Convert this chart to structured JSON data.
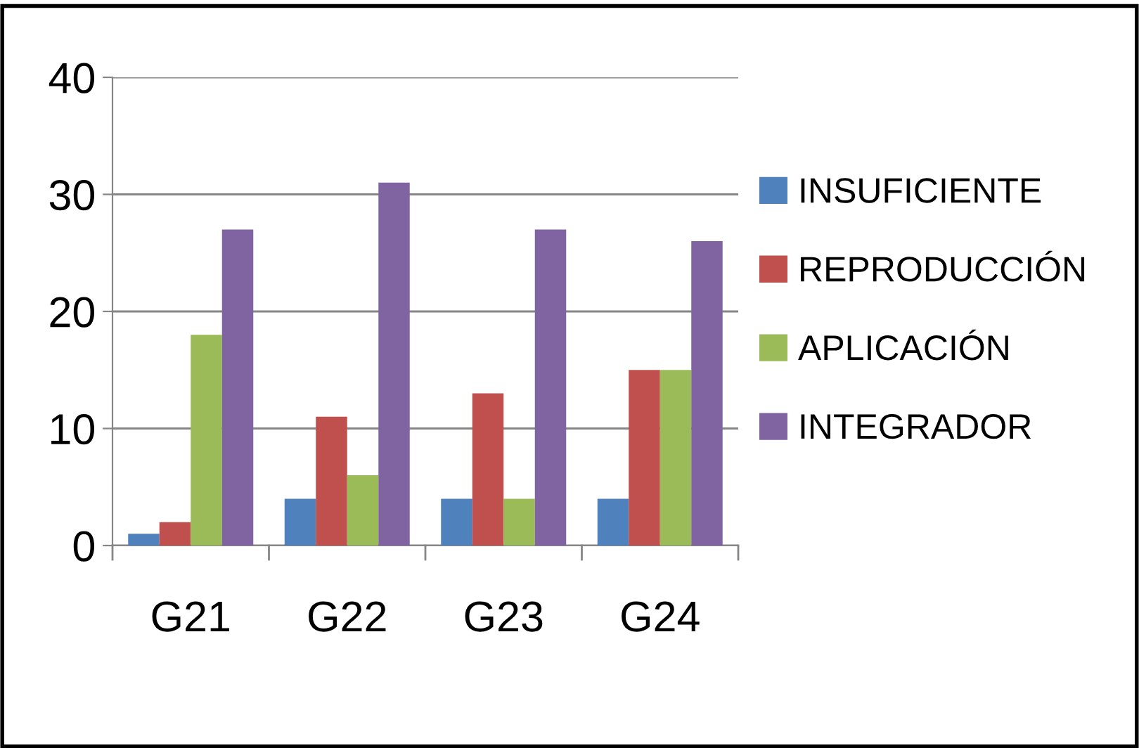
{
  "chart_data": {
    "type": "bar",
    "categories": [
      "G21",
      "G22",
      "G23",
      "G24"
    ],
    "series": [
      {
        "name": "INSUFICIENTE",
        "color": "#4f81bd",
        "values": [
          1,
          4,
          4,
          4
        ]
      },
      {
        "name": "REPRODUCCIÓN",
        "color": "#c0504d",
        "values": [
          2,
          11,
          13,
          15
        ]
      },
      {
        "name": "APLICACIÓN",
        "color": "#9bbb59",
        "values": [
          18,
          6,
          4,
          15
        ]
      },
      {
        "name": "INTEGRADOR",
        "color": "#8064a2",
        "values": [
          27,
          31,
          27,
          26
        ]
      }
    ],
    "ylim": [
      0,
      40
    ],
    "yticks": [
      0,
      10,
      20,
      30,
      40
    ],
    "grid": "y",
    "legend": "right"
  }
}
